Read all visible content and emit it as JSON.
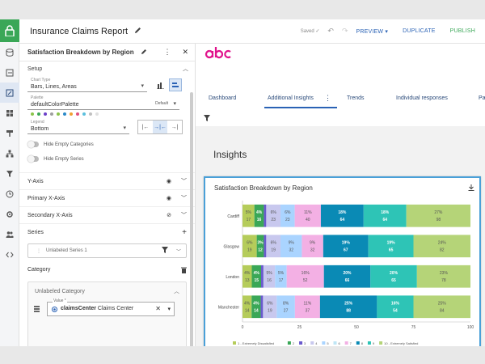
{
  "app": {
    "title": "Insurance Claims Report",
    "saved_text": "Saved ✓",
    "buttons": {
      "preview": "PREVIEW ▾",
      "duplicate": "DUPLICATE",
      "publish": "PUBLISH"
    }
  },
  "panel": {
    "title": "Satisfaction Breakdown by Region",
    "setup_label": "Setup",
    "chart_type": {
      "label": "Chart Type",
      "value": "Bars, Lines, Areas"
    },
    "palette": {
      "label": "Palette",
      "value": "defaultColorPalette",
      "badge": "Default"
    },
    "palette_colors": [
      "#8bc34a",
      "#3aa757",
      "#6a3fc8",
      "#9e9e9e",
      "#8bc34a",
      "#2a8ac8",
      "#f0a030",
      "#e05080",
      "#5bc0de",
      "#c0c0c0",
      "#e0e0e0"
    ],
    "legend": {
      "label": "Legend",
      "value": "Bottom"
    },
    "hide_empty_categories": "Hide Empty Categories",
    "hide_empty_series": "Hide Empty Series",
    "y_axis": "Y-Axis",
    "primary_x_axis": "Primary X-Axis",
    "secondary_x_axis": "Secondary X-Axis",
    "series_label": "Series",
    "series_item": "Unlabeled Series 1",
    "category_label": "Category",
    "unlabeled_category": "Unlabeled Category",
    "value_label": "Value *",
    "value_field_bold": "claimsCenter",
    "value_field_rest": " Claims Center"
  },
  "main": {
    "tabs": [
      "Dashboard",
      "Additional Insights",
      "Trends",
      "Individual responses",
      "Pa"
    ],
    "active_tab": "Additional Insights",
    "insights_heading": "Insights",
    "card_title": "Satisfaction Breakdown by Region"
  },
  "chart_data": {
    "type": "bar",
    "stacked": true,
    "orientation": "horizontal",
    "title": "Satisfaction Breakdown by Region",
    "categories": [
      "Cardiff",
      "Glasgow",
      "London",
      "Manchester"
    ],
    "xlim": [
      0,
      100
    ],
    "xticks": [
      "0",
      "25",
      "50",
      "75",
      "100"
    ],
    "legend_position": "bottom",
    "series": [
      {
        "name": "1 - Extremely Dissatisfied",
        "color": "#b5cc5a",
        "values": [
          5,
          6,
          4,
          4
        ],
        "counts": [
          17,
          19,
          13,
          14
        ]
      },
      {
        "name": "2",
        "color": "#3aa757",
        "values": [
          4,
          3,
          4,
          4
        ],
        "counts": [
          16,
          12,
          15,
          14
        ]
      },
      {
        "name": "3",
        "color": "#6a5acd",
        "values": [
          1,
          1,
          1,
          1
        ],
        "counts": [
          null,
          null,
          null,
          null
        ]
      },
      {
        "name": "4",
        "color": "#c8c8ee",
        "values": [
          6,
          6,
          5,
          6
        ],
        "counts": [
          23,
          19,
          16,
          19
        ]
      },
      {
        "name": "5",
        "color": "#aad4ff",
        "values": [
          6,
          9,
          5,
          8
        ],
        "counts": [
          23,
          32,
          17,
          27
        ]
      },
      {
        "name": "6",
        "color": "#bfe6f5",
        "values": [
          0,
          0,
          0,
          0
        ],
        "counts": [
          null,
          null,
          null,
          null
        ]
      },
      {
        "name": "7",
        "color": "#f3b0e4",
        "values": [
          11,
          9,
          16,
          11
        ],
        "counts": [
          40,
          32,
          52,
          37
        ]
      },
      {
        "name": "8",
        "color": "#0a8ab5",
        "values": [
          18,
          19,
          20,
          25
        ],
        "counts": [
          64,
          67,
          66,
          88
        ]
      },
      {
        "name": "9",
        "color": "#2ec4b6",
        "values": [
          18,
          19,
          20,
          16
        ],
        "counts": [
          64,
          65,
          65,
          54
        ]
      },
      {
        "name": "10 - Extremely Satisfied",
        "color": "#b5d478",
        "values": [
          27,
          24,
          23,
          25
        ],
        "counts": [
          98,
          82,
          78,
          84
        ]
      }
    ]
  }
}
